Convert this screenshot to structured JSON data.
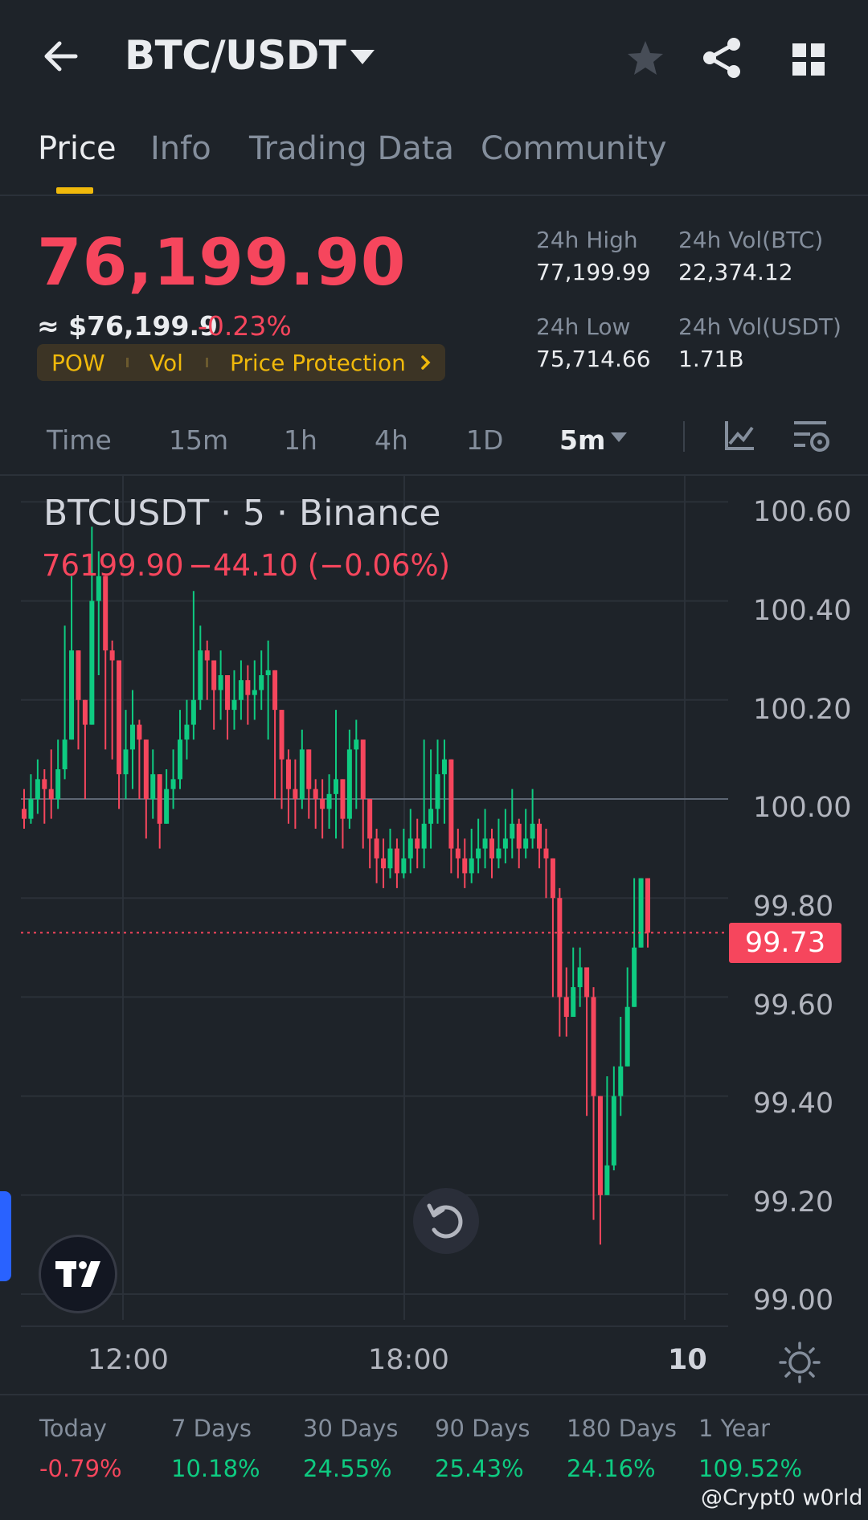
{
  "header": {
    "pair": "BTC/USDT",
    "icons": [
      "back-arrow-icon",
      "caret-down-icon",
      "star-icon",
      "share-icon",
      "grid-icon"
    ]
  },
  "tabs": [
    {
      "label": "Price",
      "active": true
    },
    {
      "label": "Info",
      "active": false
    },
    {
      "label": "Trading Data",
      "active": false
    },
    {
      "label": "Community",
      "active": false
    }
  ],
  "ticker": {
    "last_price": "76,199.90",
    "fiat_price": "≈ $76,199.9",
    "change_pct": "-0.23%",
    "tags": [
      "POW",
      "Vol",
      "Price Protection"
    ],
    "stats": [
      {
        "label": "24h High",
        "value": "77,199.99"
      },
      {
        "label": "24h Vol(BTC)",
        "value": "22,374.12"
      },
      {
        "label": "24h Low",
        "value": "75,714.66"
      },
      {
        "label": "24h Vol(USDT)",
        "value": "1.71B"
      }
    ]
  },
  "intervals": {
    "items": [
      "Time",
      "15m",
      "1h",
      "4h",
      "1D"
    ],
    "selected": "5m"
  },
  "chart": {
    "title": "BTCUSDT · 5 · Binance",
    "ohlc_price": "76199.90",
    "ohlc_change": "−44.10 (−0.06%)",
    "y_ticks": [
      "100.60",
      "100.40",
      "100.20",
      "100.00",
      "99.80",
      "99.60",
      "99.40",
      "99.20",
      "99.00"
    ],
    "current_label": "99.73",
    "x_ticks": [
      "12:00",
      "18:00",
      "10"
    ],
    "colors": {
      "up": "#0ecb81",
      "down": "#f6465d",
      "grid": "#2b3139",
      "baseline": "#5d6673"
    }
  },
  "chart_data": {
    "type": "candlestick",
    "ylim": [
      99.0,
      100.6
    ],
    "baseline": 100.0,
    "last_price": 99.73,
    "closes": [
      99.96,
      100.0,
      100.04,
      100.02,
      100.0,
      100.06,
      100.12,
      100.3,
      100.2,
      100.15,
      100.4,
      100.45,
      100.3,
      100.28,
      100.05,
      100.1,
      100.15,
      100.12,
      100.0,
      100.05,
      99.95,
      100.02,
      100.04,
      100.12,
      100.15,
      100.2,
      100.3,
      100.28,
      100.22,
      100.25,
      100.18,
      100.2,
      100.24,
      100.21,
      100.22,
      100.25,
      100.26,
      100.18,
      100.08,
      100.02,
      100.0,
      100.1,
      100.02,
      100.0,
      99.98,
      100.01,
      100.04,
      99.96,
      100.1,
      100.12,
      100.0,
      99.92,
      99.88,
      99.86,
      99.9,
      99.85,
      99.88,
      99.92,
      99.9,
      99.95,
      99.98,
      100.05,
      100.08,
      99.9,
      99.88,
      99.85,
      99.88,
      99.9,
      99.92,
      99.88,
      99.9,
      99.92,
      99.95,
      99.9,
      99.92,
      99.95,
      99.9,
      99.88,
      99.8,
      99.6,
      99.56,
      99.62,
      99.66,
      99.6,
      99.4,
      99.2,
      99.26,
      99.4,
      99.46,
      99.58,
      99.7,
      99.84,
      99.73
    ],
    "highs": [
      100.02,
      100.05,
      100.08,
      100.06,
      100.1,
      100.12,
      100.35,
      100.45,
      100.3,
      100.2,
      100.55,
      100.5,
      100.38,
      100.32,
      100.15,
      100.18,
      100.22,
      100.16,
      100.08,
      100.1,
      100.02,
      100.06,
      100.1,
      100.18,
      100.2,
      100.42,
      100.35,
      100.32,
      100.28,
      100.3,
      100.24,
      100.26,
      100.28,
      100.27,
      100.28,
      100.3,
      100.32,
      100.22,
      100.14,
      100.1,
      100.08,
      100.14,
      100.08,
      100.04,
      100.04,
      100.05,
      100.18,
      100.04,
      100.14,
      100.16,
      100.06,
      99.98,
      99.94,
      99.92,
      99.94,
      99.92,
      99.94,
      99.98,
      99.96,
      100.12,
      100.1,
      100.12,
      100.12,
      99.96,
      99.94,
      99.92,
      99.94,
      99.96,
      99.98,
      99.94,
      99.96,
      99.98,
      100.02,
      99.96,
      99.98,
      100.02,
      99.96,
      99.94,
      99.88,
      99.82,
      99.66,
      99.7,
      99.7,
      99.64,
      99.62,
      99.4,
      99.44,
      99.46,
      99.56,
      99.66,
      99.84,
      99.84,
      99.82
    ],
    "lows": [
      99.94,
      99.95,
      99.97,
      99.95,
      99.96,
      99.98,
      100.04,
      100.15,
      100.1,
      100.0,
      100.2,
      100.25,
      100.1,
      100.08,
      99.98,
      100.0,
      100.02,
      100.0,
      99.92,
      99.96,
      99.9,
      99.96,
      99.98,
      100.02,
      100.08,
      100.12,
      100.18,
      100.2,
      100.14,
      100.16,
      100.12,
      100.14,
      100.16,
      100.15,
      100.16,
      100.18,
      100.12,
      100.0,
      99.98,
      99.95,
      99.94,
      99.98,
      99.96,
      99.94,
      99.92,
      99.94,
      99.92,
      99.9,
      99.94,
      99.98,
      99.9,
      99.86,
      99.83,
      99.82,
      99.84,
      99.82,
      99.84,
      99.85,
      99.86,
      99.86,
      99.9,
      99.95,
      99.95,
      99.85,
      99.84,
      99.82,
      99.83,
      99.85,
      99.86,
      99.84,
      99.86,
      99.87,
      99.88,
      99.86,
      99.88,
      99.9,
      99.86,
      99.8,
      99.6,
      99.52,
      99.52,
      99.56,
      99.58,
      99.36,
      99.15,
      99.1,
      99.2,
      99.25,
      99.36,
      99.5,
      99.66,
      99.72,
      99.7
    ],
    "x_ticks": [
      "12:00",
      "18:00",
      "10"
    ]
  },
  "performance": [
    {
      "label": "Today",
      "value": "-0.79%",
      "dir": "neg"
    },
    {
      "label": "7 Days",
      "value": "10.18%",
      "dir": "pos"
    },
    {
      "label": "30 Days",
      "value": "24.55%",
      "dir": "pos"
    },
    {
      "label": "90 Days",
      "value": "25.43%",
      "dir": "pos"
    },
    {
      "label": "180 Days",
      "value": "24.16%",
      "dir": "pos"
    },
    {
      "label": "1 Year",
      "value": "109.52%",
      "dir": "pos"
    }
  ],
  "watermark": "@Crypt0 w0rld"
}
